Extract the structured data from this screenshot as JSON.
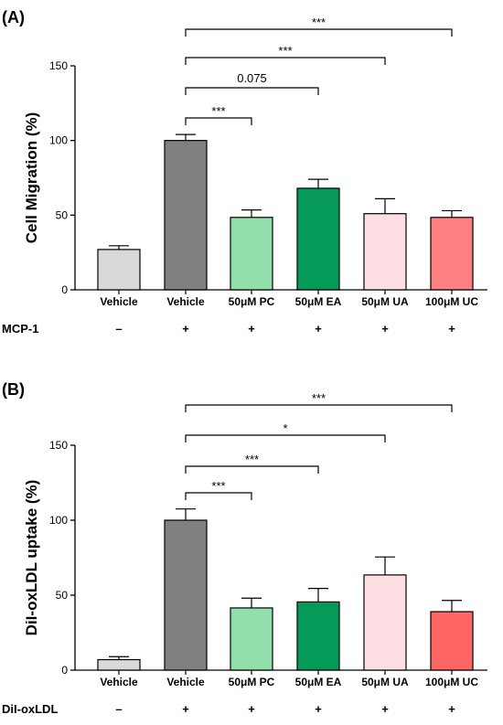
{
  "chart_data": [
    {
      "type": "bar",
      "panel_label": "(A)",
      "ylabel": "Cell Migration (%)",
      "ylim": [
        0,
        150
      ],
      "yticks": [
        0,
        50,
        100,
        150
      ],
      "categories": [
        "Vehicle",
        "Vehicle",
        "50μM PC",
        "50μM EA",
        "50μM UA",
        "100μM UC"
      ],
      "values": [
        27,
        100,
        48.5,
        68,
        51,
        48.5
      ],
      "errors": [
        2.5,
        4,
        5,
        6,
        10,
        4.5
      ],
      "colors": [
        "#d9d9d9",
        "#808080",
        "#93dfac",
        "#059a5a",
        "#fddfe3",
        "#ff8080"
      ],
      "treatment_label": "MCP-1",
      "treatment_marks": [
        "–",
        "+",
        "+",
        "+",
        "+",
        "+"
      ],
      "comparisons": [
        {
          "from": 1,
          "to": 2,
          "label": "***"
        },
        {
          "from": 1,
          "to": 3,
          "label": "0.075"
        },
        {
          "from": 1,
          "to": 4,
          "label": "***"
        },
        {
          "from": 1,
          "to": 5,
          "label": "***"
        }
      ]
    },
    {
      "type": "bar",
      "panel_label": "(B)",
      "ylabel": "DiI-oxLDL uptake (%)",
      "ylim": [
        0,
        150
      ],
      "yticks": [
        0,
        50,
        100,
        150
      ],
      "categories": [
        "Vehicle",
        "Vehicle",
        "50μM PC",
        "50μM EA",
        "50μM UA",
        "100μM UC"
      ],
      "values": [
        7,
        100,
        41.5,
        45.5,
        63.5,
        39
      ],
      "errors": [
        2,
        7.5,
        6.5,
        9,
        12,
        7.5
      ],
      "colors": [
        "#d9d9d9",
        "#808080",
        "#93dfac",
        "#059a5a",
        "#fddfe3",
        "#ff6666"
      ],
      "treatment_label": "DiI-oxLDL",
      "treatment_marks": [
        "–",
        "+",
        "+",
        "+",
        "+",
        "+"
      ],
      "comparisons": [
        {
          "from": 1,
          "to": 2,
          "label": "***"
        },
        {
          "from": 1,
          "to": 3,
          "label": "***"
        },
        {
          "from": 1,
          "to": 4,
          "label": "*"
        },
        {
          "from": 1,
          "to": 5,
          "label": "***"
        }
      ]
    }
  ]
}
